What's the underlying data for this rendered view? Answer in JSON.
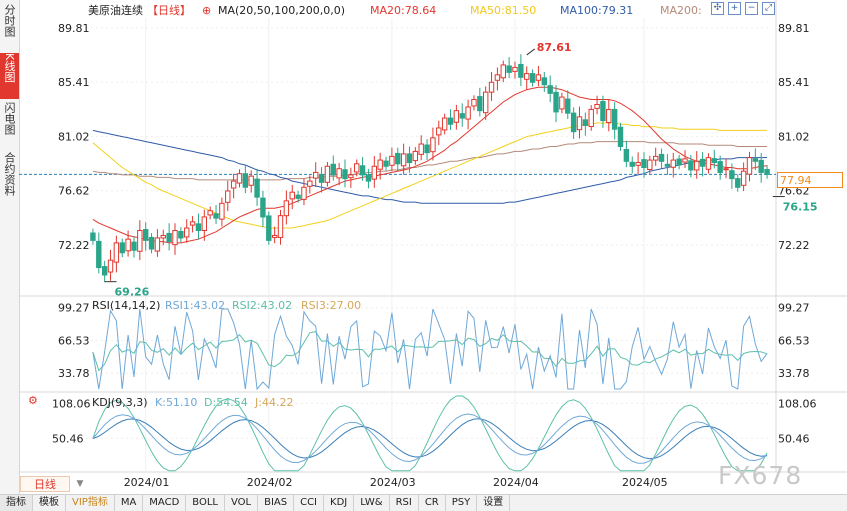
{
  "left_tabs": [
    "分时图",
    "K线图",
    "闪电图",
    "合约资料"
  ],
  "bottom_tabs": [
    "指标",
    "模板",
    "VIP指标",
    "MA",
    "MACD",
    "BOLL",
    "VOL",
    "BIAS",
    "CCI",
    "KDJ",
    "LW&",
    "RSI",
    "CR",
    "PSY",
    "设置"
  ],
  "period_label": "日线",
  "watermark": "FX678",
  "current_price": "77.94",
  "colors": {
    "up": "#e2372e",
    "down": "#2aa58a",
    "ma20": "#e2372e",
    "ma50": "#f2d11c",
    "ma100": "#2f5ba8",
    "ma200": "#b58a7a",
    "rsi1": "#6fa8d8",
    "rsi2": "#5cc0a8",
    "rsi3": "#d4a85a"
  },
  "chart_data": [
    {
      "type": "candlestick",
      "title": "美原油连续",
      "period": "【日线】",
      "indicator_label": "MA(20,50,100,200,0,0)",
      "legend": [
        {
          "name": "MA20",
          "value": "78.64"
        },
        {
          "name": "MA50",
          "value": "81.50"
        },
        {
          "name": "MA100",
          "value": "79.31"
        },
        {
          "name": "MA200",
          "value": ""
        }
      ],
      "yticks": [
        "89.81",
        "85.41",
        "81.02",
        "76.62",
        "72.22"
      ],
      "xticks": [
        "2024/01",
        "2024/02",
        "2024/03",
        "2024/04",
        "2024/05"
      ],
      "ylim": [
        68.1,
        90.6
      ],
      "annotations": [
        {
          "label": "87.61",
          "value": 87.61,
          "index": 74,
          "kind": "high"
        },
        {
          "label": "69.26",
          "value": 69.26,
          "index": 3,
          "kind": "low"
        },
        {
          "label": "76.15",
          "value": 76.15,
          "index": 117,
          "kind": "low"
        }
      ],
      "reference_line": 77.94,
      "candles_close": [
        72.6,
        70.4,
        69.8,
        71.0,
        72.4,
        71.6,
        72.7,
        71.8,
        73.4,
        72.6,
        71.9,
        72.8,
        73.0,
        72.5,
        73.4,
        72.8,
        73.6,
        74.1,
        73.4,
        74.5,
        75.0,
        74.4,
        75.6,
        76.6,
        77.4,
        78.0,
        76.9,
        77.8,
        76.1,
        74.5,
        72.6,
        73.0,
        74.6,
        75.8,
        76.5,
        76.0,
        76.9,
        77.4,
        78.1,
        77.3,
        78.6,
        77.9,
        78.4,
        77.6,
        77.9,
        78.8,
        77.9,
        77.4,
        78.6,
        79.1,
        78.6,
        79.4,
        78.8,
        79.6,
        78.9,
        79.8,
        80.4,
        79.7,
        80.9,
        81.7,
        82.5,
        82.0,
        83.1,
        82.5,
        83.4,
        84.0,
        83.1,
        84.6,
        85.4,
        86.0,
        86.8,
        86.2,
        86.6,
        85.8,
        86.1,
        85.4,
        86.0,
        85.2,
        84.5,
        83.0,
        84.2,
        82.9,
        81.4,
        82.6,
        81.9,
        83.2,
        83.6,
        82.3,
        83.2,
        81.6,
        80.2,
        79.0,
        78.6,
        78.9,
        78.5,
        79.1,
        79.4,
        79.0,
        78.6,
        79.1,
        78.7,
        79.2,
        78.3,
        79.0,
        78.6,
        79.3,
        78.9,
        78.1,
        78.4,
        77.6,
        76.9,
        78.2,
        79.3,
        79.0,
        78.1,
        77.94
      ],
      "ma20": [
        74.3,
        74.0,
        73.8,
        73.6,
        73.4,
        73.2,
        73.0,
        72.9,
        72.8,
        72.7,
        72.6,
        72.5,
        72.5,
        72.4,
        72.4,
        72.4,
        72.5,
        72.6,
        72.7,
        72.9,
        73.1,
        73.3,
        73.6,
        73.9,
        74.2,
        74.5,
        74.7,
        74.9,
        75.1,
        75.2,
        75.2,
        75.2,
        75.3,
        75.4,
        75.6,
        75.8,
        76.0,
        76.2,
        76.4,
        76.6,
        76.8,
        77.0,
        77.2,
        77.4,
        77.5,
        77.6,
        77.7,
        77.8,
        77.8,
        77.9,
        78.0,
        78.1,
        78.2,
        78.3,
        78.4,
        78.6,
        78.8,
        79.0,
        79.3,
        79.6,
        79.9,
        80.3,
        80.6,
        81.0,
        81.4,
        81.8,
        82.2,
        82.6,
        83.0,
        83.4,
        83.8,
        84.1,
        84.4,
        84.6,
        84.8,
        84.9,
        85.0,
        85.0,
        85.0,
        84.9,
        84.8,
        84.6,
        84.4,
        84.2,
        84.1,
        84.0,
        84.0,
        84.0,
        84.0,
        83.9,
        83.7,
        83.4,
        83.1,
        82.7,
        82.3,
        81.8,
        81.3,
        80.8,
        80.4,
        80.0,
        79.7,
        79.4,
        79.2,
        79.0,
        78.9,
        78.8,
        78.7,
        78.6,
        78.5,
        78.5,
        78.4,
        78.4,
        78.4,
        78.5,
        78.6,
        78.64
      ],
      "ma50": [
        80.5,
        80.1,
        79.7,
        79.3,
        78.9,
        78.5,
        78.2,
        77.9,
        77.6,
        77.3,
        77.1,
        76.8,
        76.6,
        76.4,
        76.2,
        76.0,
        75.8,
        75.6,
        75.4,
        75.2,
        75.0,
        74.8,
        74.6,
        74.4,
        74.2,
        74.1,
        74.0,
        73.9,
        73.8,
        73.7,
        73.6,
        73.6,
        73.6,
        73.6,
        73.6,
        73.7,
        73.8,
        73.9,
        74.0,
        74.1,
        74.2,
        74.4,
        74.6,
        74.8,
        75.0,
        75.2,
        75.4,
        75.6,
        75.8,
        76.0,
        76.2,
        76.4,
        76.6,
        76.8,
        77.0,
        77.2,
        77.4,
        77.6,
        77.8,
        78.0,
        78.2,
        78.4,
        78.6,
        78.8,
        79.0,
        79.2,
        79.4,
        79.6,
        79.8,
        80.0,
        80.2,
        80.4,
        80.6,
        80.8,
        81.0,
        81.1,
        81.2,
        81.3,
        81.4,
        81.5,
        81.6,
        81.7,
        81.8,
        81.9,
        82.0,
        82.0,
        82.1,
        82.1,
        82.1,
        82.1,
        82.0,
        82.0,
        81.9,
        81.9,
        81.8,
        81.8,
        81.8,
        81.7,
        81.7,
        81.7,
        81.6,
        81.6,
        81.6,
        81.6,
        81.6,
        81.6,
        81.6,
        81.5,
        81.5,
        81.5,
        81.5,
        81.5,
        81.5,
        81.5,
        81.5,
        81.5
      ],
      "ma100": [
        81.5,
        81.4,
        81.3,
        81.2,
        81.1,
        81.0,
        80.9,
        80.8,
        80.7,
        80.6,
        80.5,
        80.4,
        80.3,
        80.2,
        80.1,
        80.0,
        79.9,
        79.8,
        79.7,
        79.6,
        79.5,
        79.4,
        79.3,
        79.1,
        79.0,
        78.8,
        78.7,
        78.5,
        78.3,
        78.2,
        78.0,
        77.9,
        77.7,
        77.6,
        77.4,
        77.3,
        77.2,
        77.1,
        77.0,
        76.9,
        76.8,
        76.7,
        76.6,
        76.5,
        76.4,
        76.3,
        76.2,
        76.2,
        76.1,
        76.0,
        75.9,
        75.9,
        75.8,
        75.7,
        75.7,
        75.7,
        75.6,
        75.6,
        75.6,
        75.6,
        75.6,
        75.6,
        75.6,
        75.6,
        75.6,
        75.6,
        75.6,
        75.6,
        75.6,
        75.6,
        75.6,
        75.7,
        75.7,
        75.8,
        75.9,
        76.0,
        76.1,
        76.2,
        76.3,
        76.4,
        76.5,
        76.6,
        76.7,
        76.8,
        76.9,
        77.0,
        77.1,
        77.2,
        77.3,
        77.4,
        77.5,
        77.7,
        77.8,
        77.9,
        78.0,
        78.2,
        78.3,
        78.4,
        78.5,
        78.6,
        78.7,
        78.8,
        78.9,
        79.0,
        79.0,
        79.1,
        79.1,
        79.2,
        79.2,
        79.2,
        79.3,
        79.3,
        79.3,
        79.3,
        79.3,
        79.31
      ],
      "ma200": [
        78.2,
        78.1,
        78.1,
        78.0,
        78.0,
        77.9,
        77.9,
        77.9,
        77.8,
        77.8,
        77.8,
        77.7,
        77.7,
        77.7,
        77.6,
        77.6,
        77.6,
        77.6,
        77.5,
        77.5,
        77.5,
        77.5,
        77.5,
        77.5,
        77.5,
        77.5,
        77.5,
        77.5,
        77.5,
        77.5,
        77.5,
        77.5,
        77.5,
        77.6,
        77.6,
        77.6,
        77.6,
        77.7,
        77.7,
        77.7,
        77.8,
        77.8,
        77.8,
        77.9,
        77.9,
        78.0,
        78.0,
        78.1,
        78.1,
        78.2,
        78.2,
        78.3,
        78.3,
        78.4,
        78.5,
        78.5,
        78.6,
        78.7,
        78.7,
        78.8,
        78.9,
        79.0,
        79.0,
        79.1,
        79.2,
        79.3,
        79.3,
        79.4,
        79.5,
        79.6,
        79.6,
        79.7,
        79.8,
        79.8,
        79.9,
        80.0,
        80.0,
        80.1,
        80.2,
        80.2,
        80.3,
        80.4,
        80.4,
        80.5,
        80.5,
        80.5,
        80.6,
        80.6,
        80.6,
        80.6,
        80.6,
        80.6,
        80.6,
        80.6,
        80.6,
        80.5,
        80.5,
        80.5,
        80.5,
        80.5,
        80.4,
        80.4,
        80.4,
        80.4,
        80.4,
        80.3,
        80.3,
        80.3,
        80.3,
        80.3,
        80.2,
        80.2,
        80.2,
        80.2,
        80.2,
        80.2
      ]
    },
    {
      "type": "line",
      "indicator_label": "RSI(14,14,2)",
      "legend": [
        {
          "name": "RSI1",
          "value": "43.02"
        },
        {
          "name": "RSI2",
          "value": "43.02"
        },
        {
          "name": "RSI3",
          "value": "27.00"
        }
      ],
      "yticks": [
        "99.27",
        "66.53",
        "33.78"
      ],
      "ylim": [
        15,
        110
      ]
    },
    {
      "type": "line",
      "indicator_label": "KDJ(9,3,3)",
      "legend": [
        {
          "name": "K",
          "value": "51.10"
        },
        {
          "name": "D",
          "value": "54.54"
        },
        {
          "name": "J",
          "value": "44.22"
        }
      ],
      "yticks": [
        "108.06",
        "50.46"
      ],
      "ylim": [
        -5,
        125
      ]
    }
  ]
}
